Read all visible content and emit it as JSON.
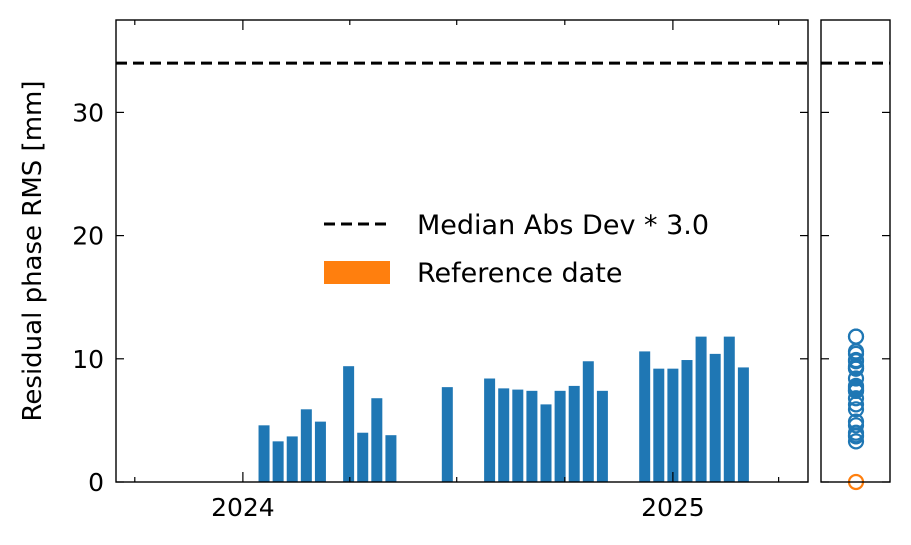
{
  "chart_data": {
    "type": "bar",
    "ylabel": "Residual phase RMS [mm]",
    "xlabel": "",
    "ylim": [
      0,
      37.5
    ],
    "yticks": [
      0,
      10,
      20,
      30
    ],
    "xlim": [
      "2023-09-15",
      "2025-04-26"
    ],
    "xticks": [
      {
        "date": "2024-01-01",
        "label": "2024"
      },
      {
        "date": "2025-01-01",
        "label": "2025"
      }
    ],
    "minor_xticks": [
      "2023-10-01",
      "2024-04-01",
      "2024-07-01",
      "2024-10-01",
      "2025-04-01"
    ],
    "threshold": {
      "value": 34.0,
      "label": "Median Abs Dev * 3.0",
      "color": "#000000"
    },
    "bar_color": "#1f77b4",
    "reference_color": "#ff7f0e",
    "legend": {
      "position": "center-right",
      "entries": [
        "Median Abs Dev * 3.0",
        "Reference date"
      ]
    },
    "series": [
      {
        "dates": [
          "2024-01-19",
          "2024-01-31",
          "2024-02-12",
          "2024-02-24",
          "2024-03-07",
          "2024-03-31",
          "2024-04-12",
          "2024-04-24",
          "2024-05-06",
          "2024-06-23",
          "2024-07-29",
          "2024-08-10",
          "2024-08-22",
          "2024-09-03",
          "2024-09-15",
          "2024-09-27",
          "2024-10-09",
          "2024-10-21",
          "2024-11-02",
          "2024-12-08",
          "2024-12-20",
          "2025-01-01",
          "2025-01-13",
          "2025-01-25",
          "2025-02-06",
          "2025-02-18",
          "2025-03-02"
        ],
        "values": [
          4.6,
          3.3,
          3.7,
          5.9,
          4.9,
          9.4,
          4.0,
          6.8,
          3.8,
          7.7,
          8.4,
          7.6,
          7.5,
          7.4,
          6.3,
          7.4,
          7.8,
          9.8,
          7.4,
          10.6,
          9.2,
          9.2,
          9.9,
          11.8,
          10.4,
          11.8,
          9.3
        ]
      }
    ],
    "distribution_panel": {
      "type": "scatter",
      "markers": "open-circle",
      "reference_value": 0.0
    }
  }
}
